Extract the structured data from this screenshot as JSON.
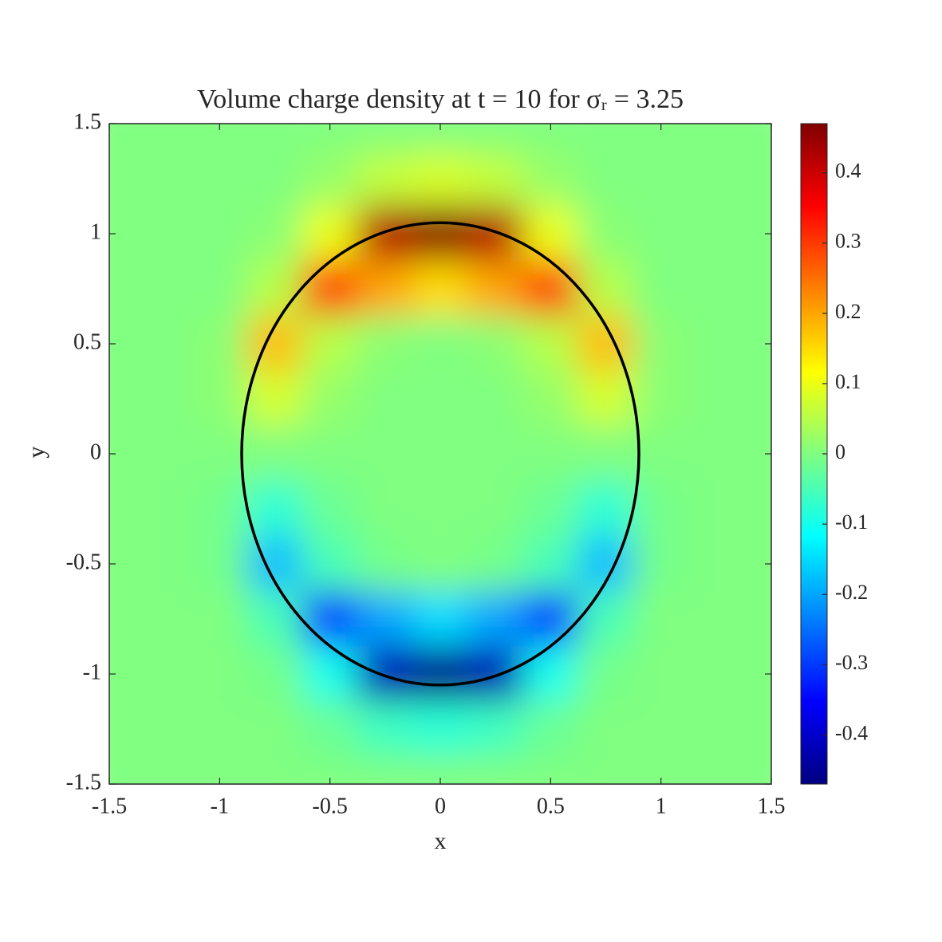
{
  "chart_data": {
    "type": "heatmap",
    "title": "Volume charge density at t = 10 for σᵣ = 3.25",
    "x_label": "x",
    "y_label": "y",
    "colormap": "jet",
    "x": [
      -1.5,
      -1.25,
      -1,
      -0.75,
      -0.5,
      -0.25,
      0,
      0.25,
      0.5,
      0.75,
      1,
      1.25,
      1.5
    ],
    "y": [
      1.5,
      1.25,
      1,
      0.75,
      0.5,
      0.25,
      0,
      -0.25,
      -0.5,
      -0.75,
      -1,
      -1.25,
      -1.5
    ],
    "values": [
      [
        0,
        0,
        0,
        0,
        0,
        0,
        0,
        0,
        0,
        0,
        0,
        0,
        0
      ],
      [
        0,
        0,
        0,
        0,
        0.02,
        0.06,
        0.08,
        0.06,
        0.02,
        0,
        0,
        0,
        0
      ],
      [
        0,
        0,
        0,
        0.01,
        0.1,
        0.42,
        0.46,
        0.42,
        0.1,
        0.01,
        0,
        0,
        0
      ],
      [
        0,
        0,
        0,
        0.05,
        0.3,
        0.2,
        0.15,
        0.2,
        0.3,
        0.05,
        0,
        0,
        0
      ],
      [
        0,
        0,
        0.01,
        0.18,
        0.05,
        0.01,
        0,
        0.01,
        0.05,
        0.18,
        0.01,
        0,
        0
      ],
      [
        0,
        0,
        0.01,
        0.08,
        0.02,
        0,
        0,
        0,
        0.02,
        0.08,
        0.01,
        0,
        0
      ],
      [
        0,
        0,
        0,
        0,
        0,
        0,
        0,
        0,
        0,
        0,
        0,
        0,
        0
      ],
      [
        0,
        0,
        -0.01,
        -0.08,
        -0.02,
        0,
        0,
        0,
        -0.02,
        -0.08,
        -0.01,
        0,
        0
      ],
      [
        0,
        0,
        -0.01,
        -0.18,
        -0.05,
        -0.01,
        0,
        -0.01,
        -0.05,
        -0.18,
        -0.01,
        0,
        0
      ],
      [
        0,
        0,
        0,
        -0.05,
        -0.3,
        -0.2,
        -0.15,
        -0.2,
        -0.3,
        -0.05,
        0,
        0,
        0
      ],
      [
        0,
        0,
        0,
        -0.01,
        -0.1,
        -0.42,
        -0.46,
        -0.42,
        -0.1,
        -0.01,
        0,
        0,
        0
      ],
      [
        0,
        0,
        0,
        0,
        -0.02,
        -0.06,
        -0.08,
        -0.06,
        -0.02,
        0,
        0,
        0,
        0
      ],
      [
        0,
        0,
        0,
        0,
        0,
        0,
        0,
        0,
        0,
        0,
        0,
        0,
        0
      ]
    ],
    "boundary": {
      "center": [
        0,
        0
      ],
      "rx": 0.9,
      "ry": 1.05
    },
    "xlim": [
      -1.5,
      1.5
    ],
    "ylim": [
      -1.5,
      1.5
    ],
    "xticks": [
      -1.5,
      -1,
      -0.5,
      0,
      0.5,
      1,
      1.5
    ],
    "yticks": [
      -1.5,
      -1,
      -0.5,
      0,
      0.5,
      1,
      1.5
    ],
    "clim": [
      -0.47,
      0.47
    ],
    "cticks": [
      -0.4,
      -0.3,
      -0.2,
      -0.1,
      0,
      0.1,
      0.2,
      0.3,
      0.4
    ]
  }
}
